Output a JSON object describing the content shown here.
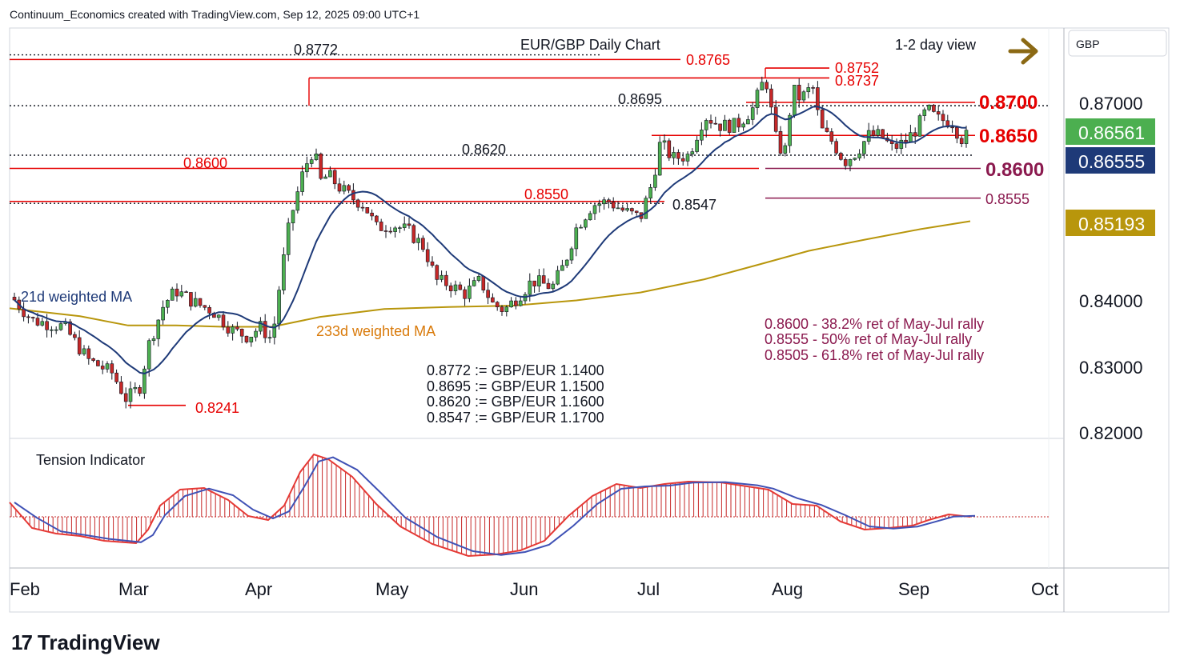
{
  "header": "Continuum_Economics created with TradingView.com, Sep 12, 2025 09:00 UTC+1",
  "footer": {
    "brand": "TradingView",
    "logo_glyph": "17"
  },
  "chart_data": {
    "type": "candlestick",
    "title": "EUR/GBP Daily Chart",
    "view": "1-2 day view",
    "currency": "GBP",
    "y_range": [
      0.8155,
      0.8895
    ],
    "y_ticks": [
      "0.87000",
      "0.84000",
      "0.83000",
      "0.82000"
    ],
    "x_ticks": [
      "Feb",
      "Mar",
      "Apr",
      "May",
      "Jun",
      "Jul",
      "Aug",
      "Sep",
      "Oct"
    ],
    "price_badges": [
      {
        "label": "0.86561",
        "value": 0.86561,
        "color": "#4caf50"
      },
      {
        "label": "0.86555",
        "value": 0.86555,
        "color": "#1e3a78"
      },
      {
        "label": "0.85193",
        "value": 0.85193,
        "color": "#b8960c"
      }
    ],
    "reference_lines": [
      {
        "label": "0.8772",
        "value": 0.8772,
        "style": "dotted",
        "color": "#131722"
      },
      {
        "label": "0.8695",
        "value": 0.8695,
        "style": "dotted",
        "color": "#131722"
      },
      {
        "label": "0.8620",
        "value": 0.862,
        "style": "dotted",
        "color": "#131722"
      },
      {
        "label": "0.8547",
        "value": 0.8547,
        "style": "dotted",
        "color": "#131722"
      },
      {
        "label": "0.8765",
        "value": 0.8765,
        "style": "solid",
        "color": "#e60000"
      },
      {
        "label": "0.8600",
        "value": 0.86,
        "style": "solid",
        "color": "#e60000"
      },
      {
        "label": "0.8550",
        "value": 0.855,
        "style": "solid",
        "color": "#e60000"
      },
      {
        "label": "0.8241",
        "value": 0.8241,
        "style": "solid",
        "color": "#e60000"
      },
      {
        "label": "0.8752",
        "value": 0.8752,
        "style": "solid",
        "color": "#e60000"
      },
      {
        "label": "0.8737",
        "value": 0.8737,
        "style": "solid",
        "color": "#e60000"
      },
      {
        "label": "0.8700",
        "value": 0.87,
        "style": "solid",
        "color": "#e60000"
      },
      {
        "label": "0.8650",
        "value": 0.865,
        "style": "solid",
        "color": "#e60000"
      },
      {
        "label": "0.8600",
        "value": 0.86,
        "style": "solid",
        "color": "#8b1a4f"
      },
      {
        "label": "0.8555",
        "value": 0.8555,
        "style": "solid",
        "color": "#8b1a4f"
      }
    ],
    "annotations": {
      "ma21": "21d weighted MA",
      "ma233": "233d weighted MA",
      "conversions": [
        "0.8772 := GBP/EUR 1.1400",
        "0.8695 := GBP/EUR 1.1500",
        "0.8620 := GBP/EUR 1.1600",
        "0.8547 := GBP/EUR 1.1700"
      ],
      "retracements": [
        "0.8600 - 38.2% ret of May-Jul rally",
        "0.8555 - 50% ret of May-Jul rally",
        "0.8505 - 61.8% ret of May-Jul rally"
      ]
    },
    "indicator_title": "Tension Indicator",
    "colors": {
      "up": "#4caf50",
      "down": "#c62828",
      "ma21": "#1e3a78",
      "ma233": "#b8960c",
      "support": "#e60000",
      "retrace": "#8b1a4f",
      "arrow": "#8b6914"
    }
  }
}
